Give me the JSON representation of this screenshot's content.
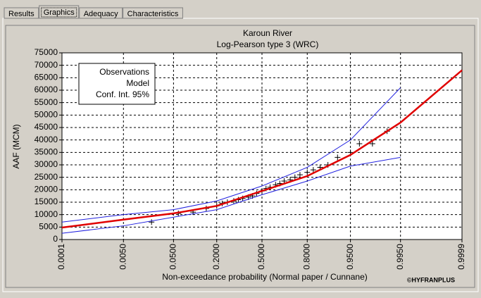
{
  "tabs": [
    "Results",
    "Graphics",
    "Adequacy",
    "Characteristics"
  ],
  "chart_data": {
    "type": "line",
    "title": "Karoun River",
    "subtitle": "Log-Pearson type 3 (WRC)",
    "x_label": "Non-exceedance probability (Normal paper / Cunnane)",
    "y_label": "AAF (MCM)",
    "credit": "©HYFRANPLUS",
    "x_scale": "normal",
    "xlim": [
      0.0001,
      0.9999
    ],
    "xticks": [
      0.0001,
      {
        "value": 0.005,
        "label": "0.0050"
      },
      {
        "value": 0.05,
        "label": "0.0500"
      },
      {
        "value": 0.2,
        "label": "0.2000"
      },
      {
        "value": 0.5,
        "label": "0.5000"
      },
      {
        "value": 0.8,
        "label": "0.8000"
      },
      {
        "value": 0.95,
        "label": "0.9500"
      },
      {
        "value": 0.995,
        "label": "0.9950"
      },
      0.9999
    ],
    "ylim": [
      0,
      75000
    ],
    "yticks": [
      0,
      5000,
      10000,
      15000,
      20000,
      25000,
      30000,
      35000,
      40000,
      45000,
      50000,
      55000,
      60000,
      65000,
      70000,
      75000
    ],
    "grid": true,
    "legend": "top-left",
    "series": [
      {
        "name": "Observations",
        "color": "#000000",
        "marker": "plus",
        "x": [
          0.02,
          0.06,
          0.1,
          0.15,
          0.2,
          0.23,
          0.26,
          0.3,
          0.33,
          0.36,
          0.4,
          0.43,
          0.46,
          0.5,
          0.53,
          0.56,
          0.6,
          0.63,
          0.66,
          0.7,
          0.73,
          0.76,
          0.8,
          0.83,
          0.86,
          0.89,
          0.92,
          0.95,
          0.965,
          0.98,
          0.99
        ],
        "values": [
          7000,
          10500,
          11000,
          12500,
          13500,
          14500,
          15000,
          15500,
          16000,
          16500,
          17000,
          17500,
          18500,
          19500,
          20500,
          21000,
          22000,
          22500,
          23500,
          24000,
          25000,
          26000,
          27000,
          28000,
          29000,
          30000,
          33000,
          35000,
          38500,
          38500,
          43500
        ]
      },
      {
        "name": "Model",
        "color": "#e00000",
        "marker": "line",
        "x": [
          0.0001,
          0.005,
          0.05,
          0.2,
          0.5,
          0.8,
          0.95,
          0.995,
          0.9999
        ],
        "values": [
          4800,
          8000,
          10500,
          13500,
          19500,
          25500,
          34000,
          47000,
          68000
        ]
      },
      {
        "name": "Conf. Int. 95%",
        "color": "#2020e0",
        "marker": "band",
        "x": [
          0.0001,
          0.005,
          0.05,
          0.2,
          0.5,
          0.8,
          0.95,
          0.995
        ],
        "values": [
          7000,
          10000,
          12000,
          15500,
          21500,
          29000,
          40000,
          61000
        ],
        "lower": [
          2500,
          5500,
          9000,
          12000,
          18000,
          23500,
          29500,
          33000
        ]
      }
    ]
  }
}
